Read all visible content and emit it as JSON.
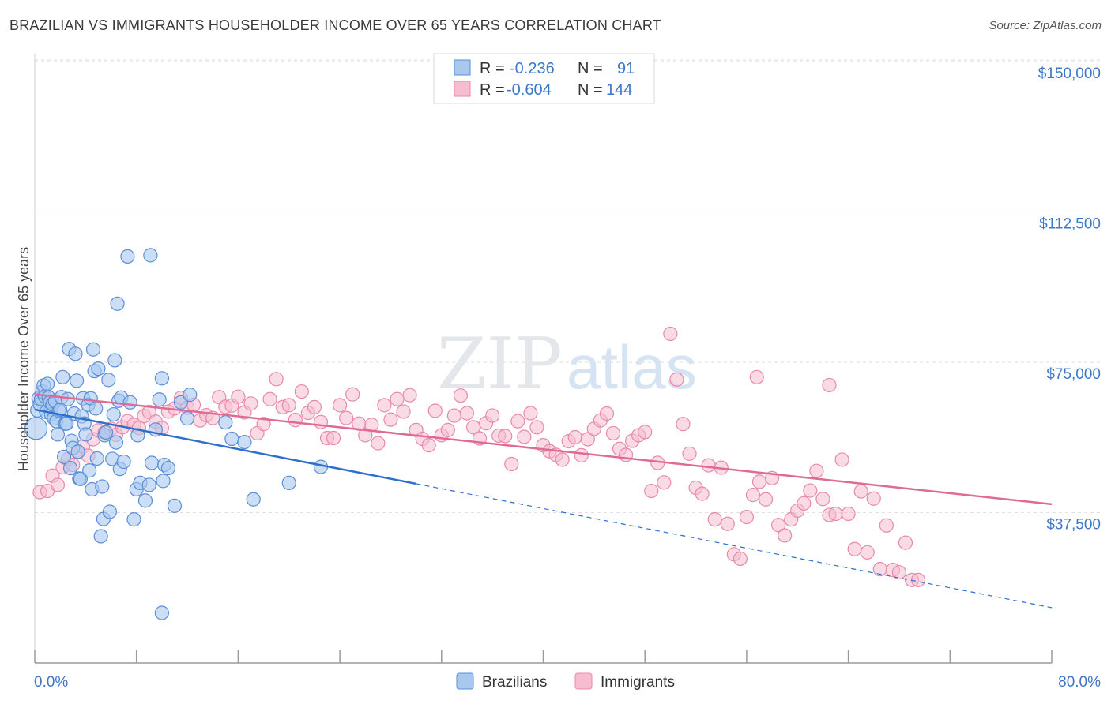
{
  "title": "BRAZILIAN VS IMMIGRANTS HOUSEHOLDER INCOME OVER 65 YEARS CORRELATION CHART",
  "source": "Source: ZipAtlas.com",
  "watermark": {
    "part1": "ZIP",
    "part2": "atlas"
  },
  "legend": {
    "r_label": "R =",
    "n_label": "N =",
    "rows": [
      {
        "r": "-0.236",
        "n": "91"
      },
      {
        "r": "-0.604",
        "n": "144"
      }
    ]
  },
  "colors": {
    "brazilians_fill": "#a9c8ee",
    "brazilians_stroke": "#5b8fd6",
    "brazilians_line": "#2f6fcc",
    "immigrants_fill": "#f6bcd0",
    "immigrants_stroke": "#e78aab",
    "immigrants_line": "#e06a96",
    "axis_label": "#3d78c8",
    "grid": "#dedede"
  },
  "chart_data": {
    "type": "scatter",
    "title": "BRAZILIAN VS IMMIGRANTS HOUSEHOLDER INCOME OVER 65 YEARS CORRELATION CHART",
    "xlabel": "",
    "ylabel": "Householder Income Over 65 years",
    "xlim": [
      0,
      80
    ],
    "ylim": [
      0,
      155000
    ],
    "x_tick_labels": [
      "0.0%",
      "80.0%"
    ],
    "y_ticks": [
      37500,
      75000,
      112500,
      150000
    ],
    "y_tick_labels": [
      "$37,500",
      "$75,000",
      "$112,500",
      "$150,000"
    ],
    "grid": true,
    "legend_position": "top-center",
    "series": [
      {
        "name": "Brazilians",
        "r": -0.236,
        "n": 91,
        "trend": {
          "x": [
            0,
            30
          ],
          "y": [
            63200,
            44700
          ]
        },
        "trend_dashed": {
          "x": [
            30,
            80
          ],
          "y": [
            44700,
            13800
          ]
        },
        "points": [
          [
            0.1,
            58500
          ],
          [
            0.2,
            63000
          ],
          [
            0.3,
            66000
          ],
          [
            0.4,
            64500
          ],
          [
            0.5,
            65800
          ],
          [
            0.6,
            67700
          ],
          [
            0.7,
            69200
          ],
          [
            0.8,
            66500
          ],
          [
            0.9,
            62600
          ],
          [
            1.0,
            69600
          ],
          [
            1.1,
            66200
          ],
          [
            1.2,
            65000
          ],
          [
            1.3,
            62000
          ],
          [
            1.4,
            64500
          ],
          [
            1.5,
            61000
          ],
          [
            1.6,
            65300
          ],
          [
            1.7,
            60300
          ],
          [
            1.8,
            57000
          ],
          [
            1.9,
            62900
          ],
          [
            2.0,
            63200
          ],
          [
            2.1,
            66300
          ],
          [
            2.2,
            71300
          ],
          [
            2.3,
            51400
          ],
          [
            2.4,
            59700
          ],
          [
            2.5,
            59700
          ],
          [
            2.6,
            65800
          ],
          [
            2.7,
            78300
          ],
          [
            2.8,
            48600
          ],
          [
            2.9,
            55400
          ],
          [
            3.0,
            53600
          ],
          [
            3.1,
            62200
          ],
          [
            3.2,
            77100
          ],
          [
            3.3,
            70400
          ],
          [
            3.4,
            52700
          ],
          [
            3.5,
            46000
          ],
          [
            3.6,
            45900
          ],
          [
            3.7,
            61500
          ],
          [
            3.8,
            66000
          ],
          [
            3.9,
            59700
          ],
          [
            4.0,
            57000
          ],
          [
            4.2,
            64400
          ],
          [
            4.3,
            48000
          ],
          [
            4.4,
            66000
          ],
          [
            4.5,
            43300
          ],
          [
            4.6,
            78200
          ],
          [
            4.7,
            72800
          ],
          [
            4.8,
            63500
          ],
          [
            4.9,
            51000
          ],
          [
            5.0,
            73400
          ],
          [
            5.2,
            31600
          ],
          [
            5.3,
            44000
          ],
          [
            5.4,
            35900
          ],
          [
            5.5,
            56800
          ],
          [
            5.6,
            57500
          ],
          [
            5.8,
            70600
          ],
          [
            5.9,
            37700
          ],
          [
            6.1,
            50900
          ],
          [
            6.2,
            62000
          ],
          [
            6.3,
            75500
          ],
          [
            6.4,
            55000
          ],
          [
            6.5,
            89600
          ],
          [
            6.6,
            65400
          ],
          [
            6.7,
            48400
          ],
          [
            6.8,
            66200
          ],
          [
            7.0,
            50200
          ],
          [
            7.5,
            65000
          ],
          [
            7.8,
            35800
          ],
          [
            8.0,
            43300
          ],
          [
            8.1,
            56800
          ],
          [
            8.3,
            44900
          ],
          [
            8.7,
            40500
          ],
          [
            9.0,
            44400
          ],
          [
            9.2,
            49900
          ],
          [
            9.5,
            58200
          ],
          [
            9.8,
            65700
          ],
          [
            10.0,
            71000
          ],
          [
            10.1,
            45400
          ],
          [
            10.2,
            49400
          ],
          [
            10.5,
            48600
          ],
          [
            11.0,
            39200
          ],
          [
            11.5,
            65000
          ],
          [
            12.0,
            61000
          ],
          [
            12.2,
            66900
          ],
          [
            15.0,
            60000
          ],
          [
            15.5,
            55900
          ],
          [
            16.5,
            55100
          ],
          [
            17.2,
            40800
          ],
          [
            20.0,
            44900
          ],
          [
            22.5,
            48900
          ],
          [
            7.3,
            101400
          ],
          [
            9.1,
            101700
          ],
          [
            10.0,
            12500
          ]
        ]
      },
      {
        "name": "Immigrants",
        "r": -0.604,
        "n": 144,
        "trend": {
          "x": [
            0,
            80
          ],
          "y": [
            67000,
            39600
          ]
        },
        "points": [
          [
            0.4,
            42600
          ],
          [
            1.0,
            42900
          ],
          [
            1.4,
            46700
          ],
          [
            1.8,
            44400
          ],
          [
            2.2,
            48800
          ],
          [
            2.6,
            50800
          ],
          [
            3.0,
            49400
          ],
          [
            3.4,
            52600
          ],
          [
            3.8,
            54000
          ],
          [
            4.2,
            51700
          ],
          [
            4.6,
            55800
          ],
          [
            5.0,
            58000
          ],
          [
            5.5,
            57500
          ],
          [
            6.0,
            58400
          ],
          [
            6.4,
            56900
          ],
          [
            6.9,
            58800
          ],
          [
            7.3,
            60300
          ],
          [
            7.8,
            59400
          ],
          [
            8.2,
            58600
          ],
          [
            8.6,
            61600
          ],
          [
            9.0,
            62600
          ],
          [
            9.5,
            60200
          ],
          [
            10.0,
            58600
          ],
          [
            10.5,
            62700
          ],
          [
            11.0,
            63500
          ],
          [
            11.5,
            66100
          ],
          [
            12.0,
            63700
          ],
          [
            12.5,
            64400
          ],
          [
            13.0,
            60500
          ],
          [
            13.5,
            61800
          ],
          [
            14.0,
            61100
          ],
          [
            14.5,
            66300
          ],
          [
            15.0,
            63900
          ],
          [
            15.5,
            64200
          ],
          [
            16.0,
            66400
          ],
          [
            16.5,
            62500
          ],
          [
            17.0,
            64700
          ],
          [
            17.5,
            57300
          ],
          [
            18.0,
            59600
          ],
          [
            18.5,
            65800
          ],
          [
            19.0,
            70800
          ],
          [
            19.5,
            63800
          ],
          [
            20.0,
            64300
          ],
          [
            20.5,
            60600
          ],
          [
            21.0,
            67700
          ],
          [
            21.5,
            62400
          ],
          [
            22.0,
            63800
          ],
          [
            22.5,
            60100
          ],
          [
            23.0,
            56100
          ],
          [
            23.5,
            56100
          ],
          [
            24.0,
            64300
          ],
          [
            24.5,
            61100
          ],
          [
            25.0,
            67000
          ],
          [
            25.5,
            59700
          ],
          [
            26.0,
            56800
          ],
          [
            26.5,
            59400
          ],
          [
            27.0,
            54800
          ],
          [
            27.5,
            64300
          ],
          [
            28.0,
            60700
          ],
          [
            28.5,
            65800
          ],
          [
            29.0,
            62700
          ],
          [
            29.5,
            66800
          ],
          [
            30.0,
            58100
          ],
          [
            30.5,
            55900
          ],
          [
            31.0,
            54300
          ],
          [
            31.5,
            62900
          ],
          [
            32.0,
            56800
          ],
          [
            32.5,
            58100
          ],
          [
            33.0,
            61700
          ],
          [
            33.5,
            66700
          ],
          [
            34.0,
            62300
          ],
          [
            34.5,
            58800
          ],
          [
            35.0,
            56000
          ],
          [
            35.5,
            59800
          ],
          [
            36.0,
            61700
          ],
          [
            36.5,
            56700
          ],
          [
            37.0,
            56600
          ],
          [
            37.5,
            49600
          ],
          [
            38.0,
            60300
          ],
          [
            38.5,
            56400
          ],
          [
            39.0,
            62300
          ],
          [
            39.5,
            58800
          ],
          [
            40.0,
            54300
          ],
          [
            40.5,
            52800
          ],
          [
            41.0,
            51900
          ],
          [
            41.5,
            50700
          ],
          [
            42.0,
            55300
          ],
          [
            42.5,
            56300
          ],
          [
            43.0,
            51800
          ],
          [
            43.5,
            55800
          ],
          [
            44.0,
            58400
          ],
          [
            44.5,
            60500
          ],
          [
            45.0,
            62200
          ],
          [
            45.5,
            57300
          ],
          [
            46.0,
            53400
          ],
          [
            46.5,
            51900
          ],
          [
            47.0,
            55400
          ],
          [
            47.5,
            56800
          ],
          [
            48.0,
            57600
          ],
          [
            48.5,
            42900
          ],
          [
            49.0,
            49900
          ],
          [
            49.5,
            45000
          ],
          [
            50.0,
            82100
          ],
          [
            50.5,
            70700
          ],
          [
            51.0,
            59600
          ],
          [
            51.5,
            52200
          ],
          [
            52.0,
            43700
          ],
          [
            52.5,
            42200
          ],
          [
            53.0,
            49300
          ],
          [
            53.5,
            35800
          ],
          [
            54.0,
            48700
          ],
          [
            54.5,
            34700
          ],
          [
            55.0,
            27100
          ],
          [
            55.5,
            26000
          ],
          [
            56.0,
            36400
          ],
          [
            56.5,
            41900
          ],
          [
            57.0,
            45200
          ],
          [
            57.5,
            40800
          ],
          [
            58.0,
            46100
          ],
          [
            58.5,
            34400
          ],
          [
            59.0,
            31800
          ],
          [
            59.5,
            35800
          ],
          [
            60.0,
            38000
          ],
          [
            60.5,
            39800
          ],
          [
            61.0,
            43000
          ],
          [
            61.5,
            47900
          ],
          [
            62.0,
            40900
          ],
          [
            62.5,
            36900
          ],
          [
            63.0,
            37200
          ],
          [
            63.5,
            50700
          ],
          [
            64.0,
            37200
          ],
          [
            64.5,
            28400
          ],
          [
            65.0,
            42800
          ],
          [
            65.5,
            27600
          ],
          [
            66.0,
            41000
          ],
          [
            66.5,
            23400
          ],
          [
            67.0,
            34300
          ],
          [
            67.5,
            23200
          ],
          [
            68.0,
            22600
          ],
          [
            68.5,
            30000
          ],
          [
            69.0,
            20700
          ],
          [
            69.5,
            20700
          ],
          [
            62.5,
            69300
          ],
          [
            56.8,
            71300
          ]
        ]
      }
    ]
  },
  "bottom_legend": [
    {
      "label": "Brazilians"
    },
    {
      "label": "Immigrants"
    }
  ]
}
